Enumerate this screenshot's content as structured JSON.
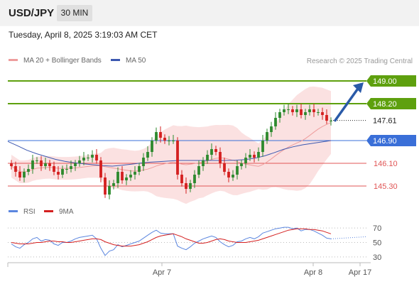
{
  "header": {
    "symbol": "USD/JPY",
    "timeframe": "30 MIN"
  },
  "datetime": "Tuesday, April 8, 2025 3:19:03 AM CET",
  "legend": {
    "bollinger": "MA 20 + Bollinger Bands",
    "ma50": "MA 50",
    "rsi": "RSI",
    "ma9": "9MA"
  },
  "credit": "Research © 2025 Trading Central",
  "colors": {
    "resistance": "#5ea00e",
    "support": "#e05555",
    "pivot": "#3a6fd8",
    "current": "#222222",
    "arrow": "#2a5aa8",
    "band": "#f7c9c9",
    "ma20": "#ee9d9d",
    "ma50": "#3c58b0",
    "candle_up": "#2e8a2e",
    "candle_down": "#d42020",
    "rsi": "#5b86df",
    "rsi_ma": "#d42020"
  },
  "chart_data": [
    {
      "type": "candlestick",
      "title": "USD/JPY",
      "x_ticks": [
        "Apr 7",
        "Apr 8",
        "Apr 17"
      ],
      "y_range": [
        144.7,
        149.45
      ],
      "price_levels": [
        {
          "label": "149.00",
          "value": 149.0,
          "kind": "resistance"
        },
        {
          "label": "148.20",
          "value": 148.2,
          "kind": "resistance"
        },
        {
          "label": "147.61",
          "value": 147.61,
          "kind": "current"
        },
        {
          "label": "146.90",
          "value": 146.9,
          "kind": "pivot"
        },
        {
          "label": "146.10",
          "value": 146.1,
          "kind": "support"
        },
        {
          "label": "145.30",
          "value": 145.3,
          "kind": "support"
        }
      ],
      "forecast_arrow": {
        "from": 147.61,
        "to": 149.0,
        "direction": "up"
      },
      "series": [
        {
          "name": "MA 20 + Bollinger Bands",
          "kind": "band_and_line"
        },
        {
          "name": "MA 50",
          "kind": "line",
          "values": [
            146.87,
            146.72,
            146.56,
            146.44,
            146.34,
            146.24,
            146.17,
            146.12,
            146.08,
            146.05,
            146.02,
            146.0,
            146.03,
            146.07,
            146.11,
            146.14,
            146.16,
            146.18,
            146.2,
            146.2,
            146.2,
            146.2,
            146.2,
            146.2,
            146.21,
            146.23,
            146.28,
            146.36,
            146.47,
            146.59,
            146.68,
            146.75,
            146.8,
            146.85,
            146.9
          ]
        },
        {
          "name": "Price",
          "kind": "ohlc_close",
          "values": [
            146.0,
            145.8,
            145.6,
            145.8,
            145.9,
            146.2,
            146.2,
            146.0,
            146.1,
            146.0,
            145.8,
            145.7,
            145.9,
            145.9,
            146.0,
            146.1,
            146.2,
            146.3,
            146.3,
            146.4,
            146.2,
            145.6,
            145.0,
            145.3,
            145.4,
            145.8,
            145.5,
            145.6,
            145.7,
            145.8,
            146.0,
            146.3,
            146.5,
            146.9,
            147.2,
            147.0,
            146.9,
            146.9,
            146.9,
            145.7,
            145.4,
            145.2,
            145.4,
            145.7,
            146.0,
            146.2,
            146.4,
            146.6,
            146.5,
            146.1,
            145.8,
            145.6,
            145.7,
            146.0,
            146.1,
            146.3,
            146.4,
            146.3,
            146.5,
            146.9,
            147.2,
            147.4,
            147.7,
            147.9,
            148.0,
            148.0,
            147.9,
            148.0,
            147.8,
            147.9,
            148.0,
            147.9,
            147.9,
            147.8,
            147.6,
            147.6
          ]
        }
      ]
    },
    {
      "type": "line",
      "x_ticks": [
        "Apr 7",
        "Apr 8",
        "Apr 17"
      ],
      "y_ticks": [
        "70",
        "50",
        "30"
      ],
      "y_range": [
        20,
        80
      ],
      "series": [
        {
          "name": "RSI",
          "values": [
            48,
            44,
            42,
            47,
            50,
            55,
            57,
            52,
            54,
            53,
            48,
            46,
            50,
            50,
            52,
            55,
            57,
            58,
            59,
            60,
            55,
            42,
            32,
            38,
            40,
            47,
            44,
            46,
            48,
            50,
            52,
            56,
            60,
            64,
            67,
            63,
            62,
            62,
            62,
            45,
            42,
            40,
            44,
            49,
            52,
            55,
            57,
            59,
            57,
            51,
            47,
            44,
            46,
            51,
            52,
            55,
            57,
            55,
            58,
            63,
            65,
            67,
            69,
            70,
            71,
            71,
            69,
            70,
            66,
            68,
            68,
            66,
            63,
            60,
            56,
            55
          ]
        },
        {
          "name": "9MA",
          "values": [
            50,
            49,
            48,
            48,
            48,
            49,
            50,
            50,
            51,
            52,
            52,
            51,
            51,
            50,
            50,
            51,
            52,
            53,
            54,
            55,
            55,
            54,
            51,
            49,
            47,
            46,
            45,
            45,
            45,
            46,
            47,
            49,
            51,
            54,
            57,
            59,
            60,
            61,
            62,
            60,
            58,
            55,
            53,
            51,
            49,
            49,
            50,
            52,
            54,
            55,
            54,
            52,
            51,
            50,
            50,
            50,
            51,
            52,
            53,
            55,
            57,
            59,
            61,
            63,
            65,
            67,
            68,
            69,
            69,
            69,
            68,
            68,
            67,
            66,
            64,
            62
          ]
        }
      ]
    }
  ]
}
